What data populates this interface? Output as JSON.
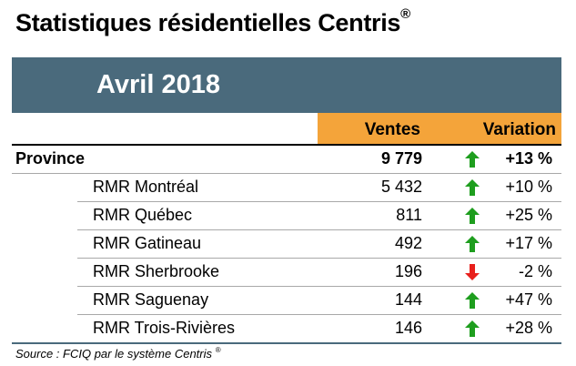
{
  "title": "Statistiques résidentielles Centris",
  "title_mark": "®",
  "period": "Avril 2018",
  "columns": {
    "sales": "Ventes",
    "variation": "Variation"
  },
  "rows": [
    {
      "name": "Province",
      "sales": "9 779",
      "direction": "up",
      "variation": "+13 %"
    },
    {
      "name": "RMR Montréal",
      "sales": "5 432",
      "direction": "up",
      "variation": "+10 %"
    },
    {
      "name": "RMR Québec",
      "sales": "811",
      "direction": "up",
      "variation": "+25 %"
    },
    {
      "name": "RMR Gatineau",
      "sales": "492",
      "direction": "up",
      "variation": "+17 %"
    },
    {
      "name": "RMR Sherbrooke",
      "sales": "196",
      "direction": "down",
      "variation": "-2 %"
    },
    {
      "name": "RMR Saguenay",
      "sales": "144",
      "direction": "up",
      "variation": "+47 %"
    },
    {
      "name": "RMR Trois-Rivières",
      "sales": "146",
      "direction": "up",
      "variation": "+28 %"
    }
  ],
  "source": "Source : FCIQ par le système Centris",
  "source_mark": "®",
  "colors": {
    "banner": "#4a6a7c",
    "header": "#f4a43a",
    "up": "#1e9e1e",
    "down": "#e8201c"
  }
}
